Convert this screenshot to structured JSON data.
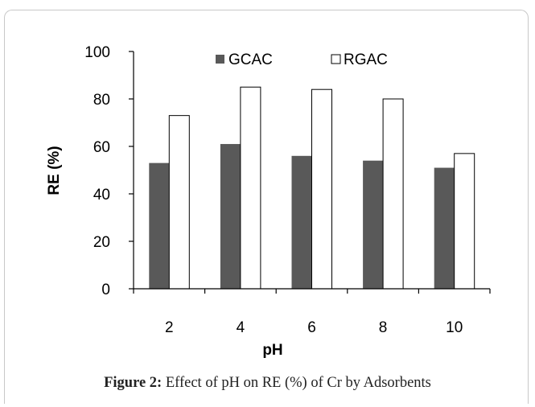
{
  "chart_data": {
    "type": "bar",
    "categories": [
      "2",
      "4",
      "6",
      "8",
      "10"
    ],
    "series": [
      {
        "name": "GCAC",
        "values": [
          53,
          61,
          56,
          54,
          51
        ],
        "color": "#595959"
      },
      {
        "name": "RGAC",
        "values": [
          73,
          85,
          84,
          80,
          57
        ],
        "color": "#ffffff"
      }
    ],
    "xlabel": "pH",
    "ylabel": "RE (%)",
    "ylim": [
      0,
      100
    ],
    "yticks": [
      0,
      20,
      40,
      60,
      80,
      100
    ],
    "legend_position": "top",
    "grid": false
  },
  "caption": {
    "label": "Figure 2:",
    "text": " Effect of pH on RE (%) of Cr by Adsorbents"
  }
}
